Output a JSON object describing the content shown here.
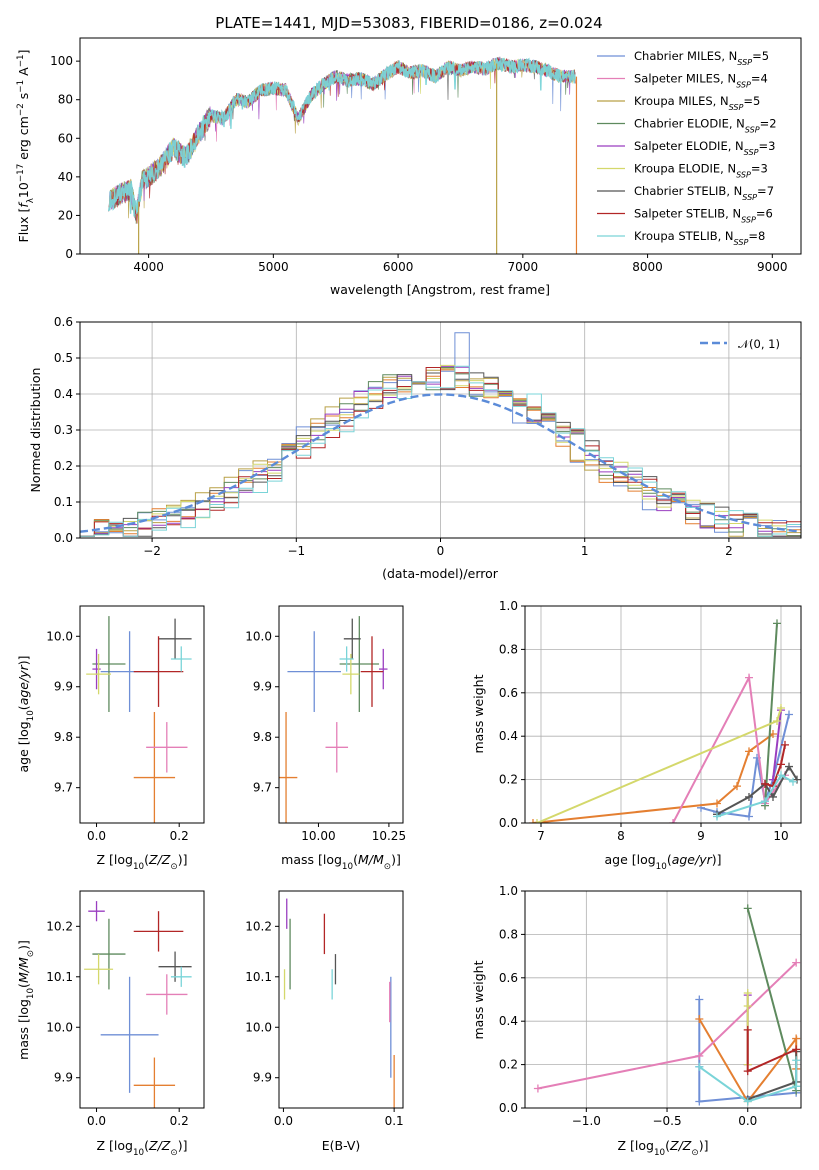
{
  "figure_title": "PLATE=1441, MJD=53083, FIBERID=0186, z=0.024",
  "colors": [
    "#6f8fd6",
    "#e47f31",
    "#b9a147",
    "#5e8a5e",
    "#9a3ec0",
    "#d4d86b",
    "#555555",
    "#b22626",
    "#7ad4d8",
    "#e47fb7"
  ],
  "chart_data": [
    {
      "id": "spectrum",
      "type": "line",
      "title": "PLATE=1441, MJD=53083, FIBERID=0186, z=0.024",
      "xlabel": "wavelength [Angstrom, rest frame]",
      "ylabel": "Flux [f_λ 10^-17 erg cm^-2 s^-1 A^-1]",
      "xlim": [
        3450,
        9230
      ],
      "ylim": [
        0,
        112
      ],
      "xticks": [
        4000,
        5000,
        6000,
        7000,
        8000,
        9000
      ],
      "yticks": [
        0,
        20,
        40,
        60,
        80,
        100
      ],
      "legend_position": "upper right",
      "grid": false,
      "shape_x": [
        3680,
        3750,
        3800,
        3860,
        3900,
        3950,
        4000,
        4100,
        4200,
        4300,
        4400,
        4500,
        4600,
        4700,
        4800,
        4900,
        5000,
        5100,
        5200,
        5300,
        5400,
        5500,
        5600,
        5700,
        5800,
        5900,
        6000,
        6100,
        6200,
        6300,
        6400,
        6500,
        6600,
        6700,
        6800,
        6900,
        7000,
        7100,
        7200,
        7300,
        7420
      ],
      "shape_y": [
        28,
        30,
        32,
        33,
        20,
        38,
        40,
        46,
        55,
        50,
        62,
        72,
        70,
        80,
        79,
        85,
        86,
        85,
        70,
        82,
        88,
        92,
        90,
        91,
        88,
        93,
        97,
        94,
        95,
        92,
        97,
        95,
        97,
        96,
        99,
        97,
        98,
        97,
        95,
        92,
        92
      ],
      "glitches": [
        {
          "x": 3920,
          "y": 0
        },
        {
          "x": 6790,
          "y": 0
        },
        {
          "x": 7430,
          "y": 0
        }
      ],
      "series": [
        {
          "name": "Chabrier MILES",
          "nssp": "5",
          "color": "#6f8fd6"
        },
        {
          "name": "Salpeter MILES",
          "nssp": "4",
          "color": "#e47fb7"
        },
        {
          "name": "Kroupa MILES",
          "nssp": "5",
          "color": "#b9a147"
        },
        {
          "name": "Chabrier ELODIE",
          "nssp": "2",
          "color": "#5e8a5e"
        },
        {
          "name": "Salpeter ELODIE",
          "nssp": "3",
          "color": "#9a3ec0"
        },
        {
          "name": "Kroupa ELODIE",
          "nssp": "3",
          "color": "#d4d86b"
        },
        {
          "name": "Chabrier STELIB",
          "nssp": "7",
          "color": "#555555"
        },
        {
          "name": "Salpeter STELIB",
          "nssp": "6",
          "color": "#b22626"
        },
        {
          "name": "Kroupa STELIB",
          "nssp": "8",
          "color": "#7ad4d8"
        }
      ]
    },
    {
      "id": "residuals",
      "type": "step",
      "xlabel": "(data-model)/error",
      "ylabel": "Normed distribution",
      "xlim": [
        -2.5,
        2.5
      ],
      "ylim": [
        0,
        0.6
      ],
      "xticks": [
        -2,
        -1,
        0,
        1,
        2
      ],
      "yticks": [
        0.0,
        0.1,
        0.2,
        0.3,
        0.4,
        0.5,
        0.6
      ],
      "grid": true,
      "legend": "𝒩(0, 1)",
      "legend_position": "upper right",
      "bin_width": 0.1,
      "bin_start": -2.5,
      "hist_colors": [
        "#6f8fd6",
        "#e47f31",
        "#b9a147",
        "#5e8a5e",
        "#9a3ec0",
        "#d4d86b",
        "#555555",
        "#b22626",
        "#7ad4d8"
      ],
      "peak": 0.57
    },
    {
      "id": "age-vs-Z",
      "type": "errorbar",
      "xlabel": "Z [log10(Z/Z⊙)]",
      "ylabel": "age  [log10(age/yr)]",
      "xlim": [
        -0.04,
        0.26
      ],
      "ylim": [
        9.63,
        10.06
      ],
      "xticks": [
        0.0,
        0.2
      ],
      "yticks": [
        9.7,
        9.8,
        9.9,
        10.0
      ],
      "points": [
        {
          "x": 0.08,
          "y": 9.93,
          "xerr": 0.07,
          "yerr": 0.08,
          "color": "#6f8fd6"
        },
        {
          "x": 0.14,
          "y": 9.72,
          "xerr": 0.05,
          "yerr": 0.13,
          "color": "#e47f31"
        },
        {
          "x": 0.17,
          "y": 9.78,
          "xerr": 0.05,
          "yerr": 0.05,
          "color": "#e47fb7"
        },
        {
          "x": 0.03,
          "y": 9.945,
          "xerr": 0.04,
          "yerr": 0.095,
          "color": "#5e8a5e"
        },
        {
          "x": 0.0,
          "y": 9.935,
          "xerr": 0.01,
          "yerr": 0.04,
          "color": "#9a3ec0"
        },
        {
          "x": 0.005,
          "y": 9.925,
          "xerr": 0.03,
          "yerr": 0.04,
          "color": "#d4d86b"
        },
        {
          "x": 0.19,
          "y": 9.995,
          "xerr": 0.04,
          "yerr": 0.04,
          "color": "#555555"
        },
        {
          "x": 0.15,
          "y": 9.93,
          "xerr": 0.06,
          "yerr": 0.07,
          "color": "#b22626"
        },
        {
          "x": 0.205,
          "y": 9.955,
          "xerr": 0.025,
          "yerr": 0.025,
          "color": "#7ad4d8"
        }
      ]
    },
    {
      "id": "age-vs-mass",
      "type": "errorbar",
      "xlabel": "mass [log10(M/M⊙)]",
      "ylabel": "",
      "xlim": [
        9.86,
        10.3
      ],
      "ylim": [
        9.63,
        10.06
      ],
      "xticks": [
        10.0,
        10.25
      ],
      "yticks": [
        9.7,
        9.8,
        9.9,
        10.0
      ],
      "points": [
        {
          "x": 9.985,
          "y": 9.93,
          "xerr": 0.095,
          "yerr": 0.08,
          "color": "#6f8fd6"
        },
        {
          "x": 9.885,
          "y": 9.72,
          "xerr": 0.04,
          "yerr": 0.13,
          "color": "#e47f31"
        },
        {
          "x": 10.065,
          "y": 9.78,
          "xerr": 0.04,
          "yerr": 0.05,
          "color": "#e47fb7"
        },
        {
          "x": 10.145,
          "y": 9.945,
          "xerr": 0.07,
          "yerr": 0.095,
          "color": "#5e8a5e"
        },
        {
          "x": 10.23,
          "y": 9.935,
          "xerr": 0.015,
          "yerr": 0.04,
          "color": "#9a3ec0"
        },
        {
          "x": 10.115,
          "y": 9.925,
          "xerr": 0.03,
          "yerr": 0.04,
          "color": "#d4d86b"
        },
        {
          "x": 10.12,
          "y": 9.995,
          "xerr": 0.03,
          "yerr": 0.04,
          "color": "#555555"
        },
        {
          "x": 10.19,
          "y": 9.93,
          "xerr": 0.04,
          "yerr": 0.07,
          "color": "#b22626"
        },
        {
          "x": 10.1,
          "y": 9.955,
          "xerr": 0.025,
          "yerr": 0.025,
          "color": "#7ad4d8"
        }
      ]
    },
    {
      "id": "weight-vs-age",
      "type": "line",
      "xlabel": "age  [log10(age/yr)]",
      "ylabel": "mass weight",
      "xlim": [
        6.8,
        10.25
      ],
      "ylim": [
        0,
        1.0
      ],
      "xticks": [
        7,
        8,
        9,
        10
      ],
      "yticks": [
        0.0,
        0.2,
        0.4,
        0.6,
        0.8,
        1.0
      ],
      "grid": true,
      "series": [
        {
          "color": "#6f8fd6",
          "x": [
            9.0,
            9.2,
            9.6,
            9.7,
            9.8,
            9.9,
            10.1
          ],
          "y": [
            0.07,
            0.05,
            0.03,
            0.3,
            0.1,
            0.2,
            0.5
          ]
        },
        {
          "color": "#e47f31",
          "x": [
            6.9,
            9.2,
            9.45,
            9.6,
            9.9
          ],
          "y": [
            0.0,
            0.09,
            0.17,
            0.33,
            0.41
          ]
        },
        {
          "color": "#e47fb7",
          "x": [
            8.65,
            9.6,
            9.8,
            10.05
          ],
          "y": [
            0.0,
            0.67,
            0.09,
            0.22
          ]
        },
        {
          "color": "#5e8a5e",
          "x": [
            9.8,
            9.95
          ],
          "y": [
            0.08,
            0.92
          ]
        },
        {
          "color": "#9a3ec0",
          "x": [
            9.9,
            10.0
          ],
          "y": [
            0.2,
            0.52
          ]
        },
        {
          "color": "#d4d86b",
          "x": [
            6.95,
            9.95,
            10.0
          ],
          "y": [
            0.0,
            0.47,
            0.53
          ]
        },
        {
          "color": "#555555",
          "x": [
            9.2,
            9.6,
            9.8,
            9.9,
            10.1,
            10.2
          ],
          "y": [
            0.04,
            0.12,
            0.18,
            0.12,
            0.26,
            0.2
          ]
        },
        {
          "color": "#b22626",
          "x": [
            9.8,
            9.9,
            10.0,
            10.05
          ],
          "y": [
            0.18,
            0.17,
            0.27,
            0.36
          ]
        },
        {
          "color": "#7ad4d8",
          "x": [
            9.2,
            9.8,
            10.0,
            10.15
          ],
          "y": [
            0.03,
            0.1,
            0.22,
            0.19
          ]
        }
      ]
    },
    {
      "id": "mass-vs-Z",
      "type": "errorbar",
      "xlabel": "Z [log10(Z/Z⊙)]",
      "ylabel": "mass [log10(M/M⊙)]",
      "xlim": [
        -0.04,
        0.26
      ],
      "ylim": [
        9.84,
        10.27
      ],
      "xticks": [
        0.0,
        0.2
      ],
      "yticks": [
        9.9,
        10.0,
        10.1,
        10.2
      ],
      "points": [
        {
          "x": 0.08,
          "y": 9.985,
          "xerr": 0.07,
          "yerr": 0.115,
          "color": "#6f8fd6"
        },
        {
          "x": 0.14,
          "y": 9.885,
          "xerr": 0.05,
          "yerr": 0.055,
          "color": "#e47f31"
        },
        {
          "x": 0.17,
          "y": 10.065,
          "xerr": 0.05,
          "yerr": 0.04,
          "color": "#e47fb7"
        },
        {
          "x": 0.03,
          "y": 10.145,
          "xerr": 0.04,
          "yerr": 0.07,
          "color": "#5e8a5e"
        },
        {
          "x": 0.0,
          "y": 10.23,
          "xerr": 0.02,
          "yerr": 0.02,
          "color": "#9a3ec0"
        },
        {
          "x": 0.005,
          "y": 10.115,
          "xerr": 0.035,
          "yerr": 0.03,
          "color": "#d4d86b"
        },
        {
          "x": 0.19,
          "y": 10.12,
          "xerr": 0.04,
          "yerr": 0.03,
          "color": "#555555"
        },
        {
          "x": 0.15,
          "y": 10.19,
          "xerr": 0.06,
          "yerr": 0.04,
          "color": "#b22626"
        },
        {
          "x": 0.205,
          "y": 10.1,
          "xerr": 0.025,
          "yerr": 0.02,
          "color": "#7ad4d8"
        }
      ]
    },
    {
      "id": "mass-vs-ebv",
      "type": "errorbar",
      "xlabel": "E(B-V)",
      "ylabel": "",
      "xlim": [
        -0.004,
        0.108
      ],
      "ylim": [
        9.84,
        10.27
      ],
      "xticks": [
        0.0,
        0.1
      ],
      "yticks": [
        9.9,
        10.0,
        10.1,
        10.2
      ],
      "points": [
        {
          "x": 0.097,
          "y": 10.0,
          "xerr": 0.0,
          "yerr": 0.1,
          "color": "#6f8fd6"
        },
        {
          "x": 0.1,
          "y": 9.885,
          "xerr": 0.0,
          "yerr": 0.06,
          "color": "#e47f31"
        },
        {
          "x": 0.096,
          "y": 10.05,
          "xerr": 0.0,
          "yerr": 0.04,
          "color": "#e47fb7"
        },
        {
          "x": 0.006,
          "y": 10.145,
          "xerr": 0.0,
          "yerr": 0.07,
          "color": "#5e8a5e"
        },
        {
          "x": 0.003,
          "y": 10.225,
          "xerr": 0.0,
          "yerr": 0.03,
          "color": "#9a3ec0"
        },
        {
          "x": 0.001,
          "y": 10.085,
          "xerr": 0.0,
          "yerr": 0.03,
          "color": "#d4d86b"
        },
        {
          "x": 0.047,
          "y": 10.115,
          "xerr": 0.0,
          "yerr": 0.03,
          "color": "#555555"
        },
        {
          "x": 0.037,
          "y": 10.185,
          "xerr": 0.0,
          "yerr": 0.04,
          "color": "#b22626"
        },
        {
          "x": 0.044,
          "y": 10.085,
          "xerr": 0.0,
          "yerr": 0.03,
          "color": "#7ad4d8"
        }
      ]
    },
    {
      "id": "weight-vs-Z",
      "type": "line",
      "xlabel": "Z [log10(Z/Z⊙)]",
      "ylabel": "mass weight",
      "xlim": [
        -1.38,
        0.33
      ],
      "ylim": [
        0,
        1.0
      ],
      "xticks": [
        -1.0,
        -0.5,
        0.0
      ],
      "yticks": [
        0.0,
        0.2,
        0.4,
        0.6,
        0.8,
        1.0
      ],
      "grid": true,
      "series": [
        {
          "color": "#6f8fd6",
          "x": [
            -0.3,
            -0.3,
            -0.3,
            0.3
          ],
          "y": [
            0.5,
            0.19,
            0.03,
            0.07
          ]
        },
        {
          "color": "#e47f31",
          "x": [
            -0.3,
            0.0,
            0.3,
            0.3
          ],
          "y": [
            0.41,
            0.03,
            0.32,
            0.18
          ]
        },
        {
          "color": "#e47fb7",
          "x": [
            -1.3,
            -0.3,
            0.3
          ],
          "y": [
            0.09,
            0.24,
            0.67
          ]
        },
        {
          "color": "#5e8a5e",
          "x": [
            0.0,
            0.3
          ],
          "y": [
            0.92,
            0.08
          ]
        },
        {
          "color": "#9a3ec0",
          "x": [
            0.0,
            0.0
          ],
          "y": [
            0.52,
            0.2
          ]
        },
        {
          "color": "#d4d86b",
          "x": [
            0.0,
            0.0,
            0.0
          ],
          "y": [
            0.53,
            0.47,
            0.2
          ]
        },
        {
          "color": "#555555",
          "x": [
            0.0,
            0.3,
            0.3
          ],
          "y": [
            0.04,
            0.12,
            0.26
          ]
        },
        {
          "color": "#b22626",
          "x": [
            0.0,
            0.0,
            0.3
          ],
          "y": [
            0.36,
            0.17,
            0.27
          ]
        },
        {
          "color": "#7ad4d8",
          "x": [
            -0.3,
            0.0,
            0.3,
            0.3
          ],
          "y": [
            0.19,
            0.03,
            0.1,
            0.22
          ]
        }
      ]
    }
  ]
}
